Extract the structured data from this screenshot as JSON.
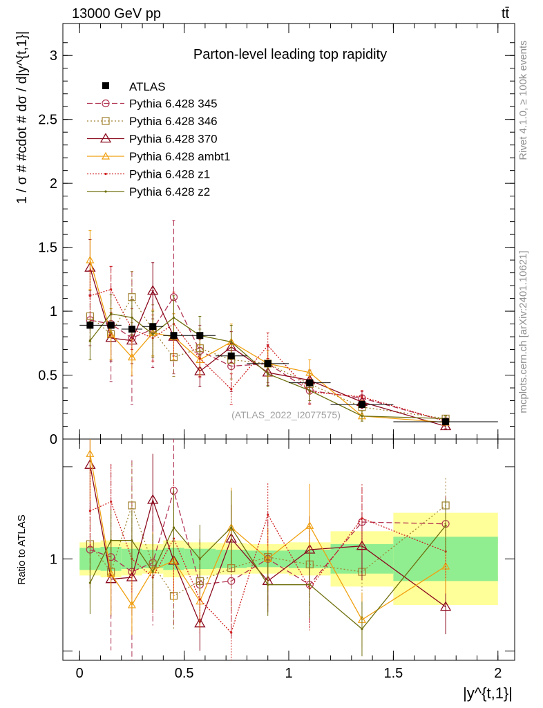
{
  "header": {
    "energy": "13000 GeV pp",
    "process": "tt̄"
  },
  "side_labels": {
    "rivet": "Rivet 4.1.0, ≥ 100k events",
    "mcplots": "mcplots.cern.ch [arXiv:2401.10621]"
  },
  "colors": {
    "ATLAS": "#000000",
    "p345": "#b03050",
    "p346": "#a08030",
    "p370": "#8b0a1e",
    "ambt1": "#f0a010",
    "z1": "#d02020",
    "z2": "#707010",
    "band_inner": "#90ee90",
    "band_outer": "#ffff99"
  },
  "chart_data": [
    {
      "type": "line",
      "panel": "main",
      "title": "Parton-level leading top rapidity",
      "watermark": "(ATLAS_2022_I2077575)",
      "xlabel": "|y^{t,1}|",
      "ylabel": "1 / σ # #cdot # dσ / d|y^{t,1}|",
      "xlim": [
        -0.08,
        2.08
      ],
      "ylim": [
        0,
        3.25
      ],
      "yticks": [
        "0",
        "0.5",
        "1",
        "1.5",
        "2",
        "2.5",
        "3"
      ],
      "xticks": [
        "0",
        "0.5",
        "1",
        "1.5",
        "2"
      ],
      "bin_edges": [
        0,
        0.1,
        0.2,
        0.3,
        0.4,
        0.5,
        0.65,
        0.8,
        1.0,
        1.2,
        1.5,
        2.0
      ],
      "x": [
        0.05,
        0.15,
        0.25,
        0.35,
        0.45,
        0.575,
        0.725,
        0.9,
        1.1,
        1.35,
        1.75
      ],
      "data": {
        "name": "ATLAS",
        "values": [
          0.89,
          0.89,
          0.86,
          0.88,
          0.81,
          0.81,
          0.65,
          0.59,
          0.44,
          0.27,
          0.135
        ]
      },
      "series": [
        {
          "name": "Pythia 6.428 345",
          "key": "p345",
          "marker": "circle",
          "dash": "8,4",
          "values": [
            0.93,
            0.9,
            0.79,
            0.86,
            1.11,
            0.69,
            0.57,
            0.59,
            0.38,
            0.32,
            0.14
          ],
          "errors": [
            0.2,
            0.45,
            0.52,
            0.3,
            0.6,
            0.2,
            0.2,
            0.15,
            0.1,
            0.05,
            0.02
          ]
        },
        {
          "name": "Pythia 6.428 346",
          "key": "p346",
          "marker": "square",
          "dash": "2,3",
          "values": [
            0.96,
            0.82,
            1.11,
            0.85,
            0.64,
            0.71,
            0.62,
            0.59,
            0.43,
            0.25,
            0.16
          ],
          "errors": [
            0.2,
            0.2,
            0.2,
            0.2,
            0.15,
            0.15,
            0.15,
            0.1,
            0.08,
            0.05,
            0.02
          ]
        },
        {
          "name": "Pythia 6.428 370",
          "key": "p370",
          "marker": "triangle-open",
          "dash": "",
          "values": [
            1.34,
            0.79,
            0.77,
            1.16,
            0.8,
            0.53,
            0.72,
            0.52,
            0.46,
            0.29,
            0.1
          ],
          "errors": [
            0.22,
            0.18,
            0.18,
            0.22,
            0.18,
            0.12,
            0.12,
            0.1,
            0.08,
            0.05,
            0.02
          ]
        },
        {
          "name": "Pythia 6.428 ambt1",
          "key": "ambt1",
          "marker": "triangle-fill",
          "dash": "",
          "values": [
            1.4,
            0.82,
            0.64,
            0.83,
            0.8,
            0.62,
            0.76,
            0.59,
            0.52,
            0.18,
            0.13
          ],
          "errors": [
            0.23,
            0.2,
            0.14,
            0.18,
            0.18,
            0.12,
            0.14,
            0.1,
            0.1,
            0.04,
            0.02
          ]
        },
        {
          "name": "Pythia 6.428 z1",
          "key": "z1",
          "marker": "dot",
          "dash": "2,2",
          "values": [
            1.12,
            1.17,
            0.86,
            0.79,
            0.9,
            0.63,
            0.39,
            0.73,
            0.37,
            0.33,
            0.14
          ],
          "errors": [
            0.2,
            0.18,
            0.16,
            0.18,
            0.25,
            0.15,
            0.12,
            0.1,
            0.1,
            0.05,
            0.02
          ]
        },
        {
          "name": "Pythia 6.428 z2",
          "key": "z2",
          "marker": "dot",
          "dash": "",
          "values": [
            0.77,
            0.98,
            0.95,
            0.82,
            0.95,
            0.81,
            0.76,
            0.51,
            0.38,
            0.18,
            0.16
          ],
          "errors": [
            0.15,
            0.15,
            0.14,
            0.18,
            0.17,
            0.15,
            0.13,
            0.1,
            0.08,
            0.04,
            0.02
          ]
        }
      ]
    },
    {
      "type": "line",
      "panel": "ratio",
      "ylabel": "Ratio to ATLAS",
      "xlabel": "|y^{t,1}|",
      "xlim": [
        -0.08,
        2.08
      ],
      "ylim": [
        0.45,
        1.65
      ],
      "yticks": [
        "1"
      ],
      "xticks": [
        "0",
        "0.5",
        "1",
        "1.5",
        "2"
      ],
      "band_inner_halfwidth": [
        0.06,
        0.065,
        0.055,
        0.05,
        0.06,
        0.055,
        0.05,
        0.045,
        0.05,
        0.08,
        0.12
      ],
      "band_outer_halfwidth": [
        0.09,
        0.1,
        0.09,
        0.08,
        0.1,
        0.09,
        0.085,
        0.08,
        0.09,
        0.15,
        0.25
      ],
      "series": [
        {
          "name": "Pythia 6.428 345",
          "key": "p345",
          "values": [
            1.05,
            1.01,
            0.93,
            0.98,
            1.37,
            0.86,
            0.88,
            1.0,
            0.86,
            1.2,
            1.19
          ]
        },
        {
          "name": "Pythia 6.428 346",
          "key": "p346",
          "values": [
            1.08,
            0.93,
            1.29,
            0.97,
            0.8,
            0.88,
            0.95,
            1.01,
            0.97,
            0.93,
            1.29
          ]
        },
        {
          "name": "Pythia 6.428 370",
          "key": "p370",
          "values": [
            1.51,
            0.89,
            0.9,
            1.32,
            0.99,
            0.65,
            1.11,
            0.88,
            1.05,
            1.07,
            0.74
          ]
        },
        {
          "name": "Pythia 6.428 ambt1",
          "key": "ambt1",
          "values": [
            1.57,
            0.92,
            0.75,
            0.94,
            0.99,
            0.77,
            1.17,
            1.0,
            1.18,
            0.67,
            0.96
          ]
        },
        {
          "name": "Pythia 6.428 z1",
          "key": "z1",
          "values": [
            1.26,
            1.31,
            1.0,
            0.9,
            1.11,
            0.78,
            0.6,
            1.24,
            0.84,
            1.22,
            1.04
          ]
        },
        {
          "name": "Pythia 6.428 z2",
          "key": "z2",
          "values": [
            0.87,
            1.1,
            1.1,
            0.93,
            1.17,
            1.0,
            1.17,
            0.86,
            0.86,
            0.62,
            1.18
          ]
        }
      ]
    }
  ]
}
